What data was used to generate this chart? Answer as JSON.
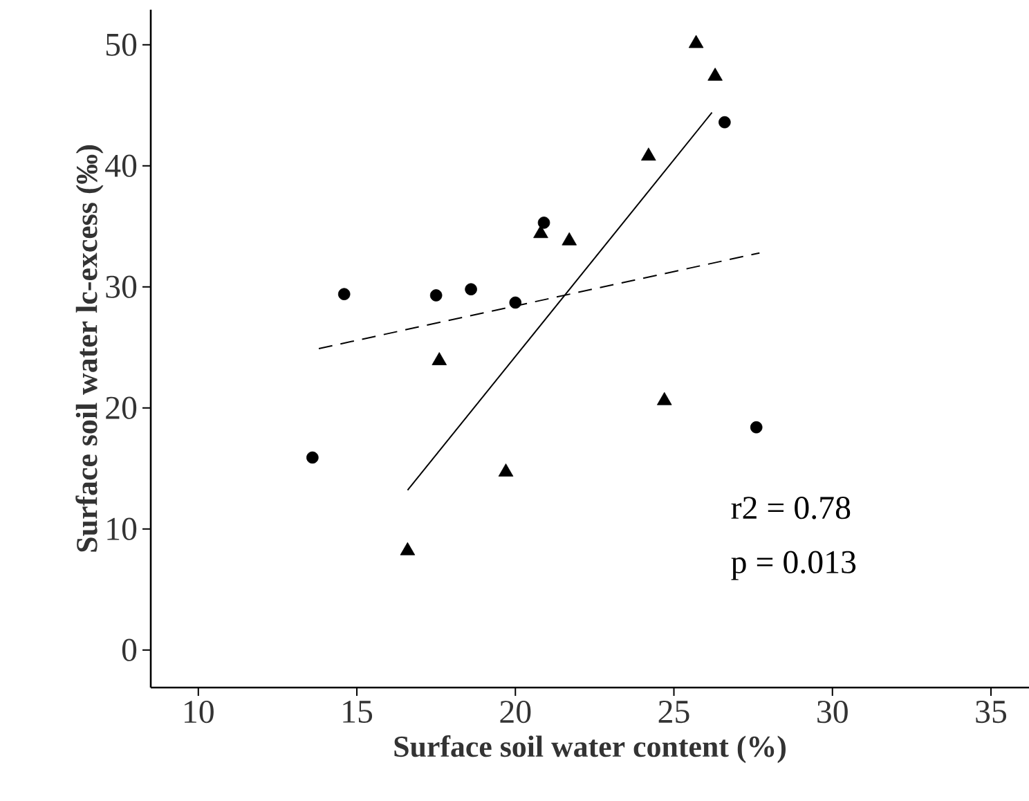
{
  "chart_data": {
    "type": "scatter",
    "xlabel": "Surface soil water content (%)",
    "ylabel": "Surface soil water lc-excess (‰)",
    "xlim": [
      8.5,
      36.2
    ],
    "ylim": [
      -3.1,
      52.9
    ],
    "xticks": [
      10,
      15,
      20,
      25,
      30,
      35
    ],
    "yticks": [
      0,
      10,
      20,
      30,
      40,
      50
    ],
    "grid": false,
    "series": [
      {
        "marker": "circle",
        "color": "#000000",
        "x": [
          13.6,
          14.6,
          17.5,
          18.6,
          20.0,
          20.9,
          26.6,
          27.6
        ],
        "values": [
          15.9,
          29.4,
          29.3,
          29.8,
          28.7,
          35.3,
          43.6,
          18.4
        ]
      },
      {
        "marker": "triangle",
        "color": "#000000",
        "x": [
          16.6,
          17.6,
          19.7,
          20.8,
          21.7,
          24.2,
          24.7,
          25.7,
          26.3
        ],
        "values": [
          8.2,
          23.9,
          14.7,
          34.4,
          33.8,
          40.8,
          20.6,
          50.1,
          47.4
        ]
      },
      {
        "type": "line",
        "line_style": "solid",
        "color": "#000000",
        "x": [
          16.6,
          26.2
        ],
        "values": [
          13.2,
          44.4
        ]
      },
      {
        "type": "line",
        "line_style": "dashed",
        "color": "#000000",
        "x": [
          13.8,
          27.7
        ],
        "values": [
          24.9,
          32.8
        ]
      }
    ],
    "annotations": [
      "r2 = 0.78",
      "p = 0.013"
    ]
  }
}
